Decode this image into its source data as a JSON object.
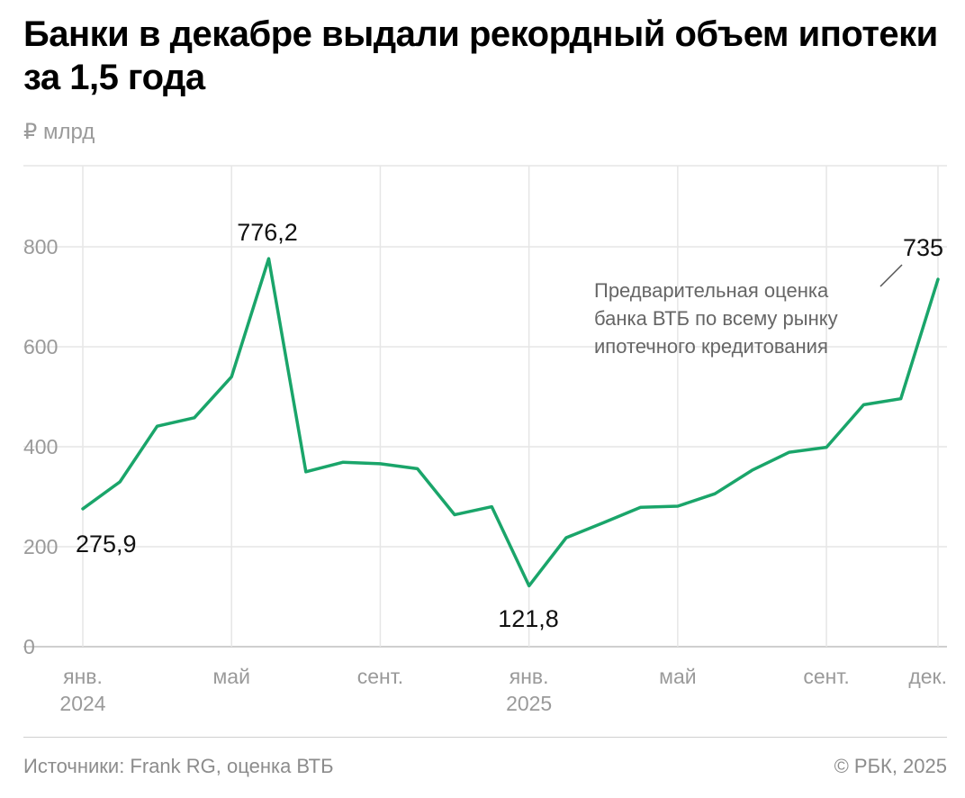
{
  "title": "Банки в декабре выдали рекордный объем ипотеки за 1,5 года",
  "unit_label": "₽ млрд",
  "source": "Источники: Frank RG, оценка ВТБ",
  "copyright": "© РБК, 2025",
  "colors": {
    "line": "#1aa56a",
    "grid": "#e6e6e6",
    "axis_text": "#9a9a9a"
  },
  "chart_data": {
    "type": "line",
    "title": "Банки в декабре выдали рекордный объем ипотеки за 1,5 года",
    "ylabel": "₽ млрд",
    "ylim": [
      0,
      800
    ],
    "yticks": [
      0,
      200,
      400,
      600,
      800
    ],
    "grid": true,
    "x": [
      "2024-01",
      "2024-02",
      "2024-03",
      "2024-04",
      "2024-05",
      "2024-06",
      "2024-07",
      "2024-08",
      "2024-09",
      "2024-10",
      "2024-11",
      "2024-12",
      "2025-01",
      "2025-02",
      "2025-03",
      "2025-04",
      "2025-05",
      "2025-06",
      "2025-07",
      "2025-08",
      "2025-09",
      "2025-10",
      "2025-11",
      "2025-12"
    ],
    "series": [
      {
        "values": [
          275.9,
          330,
          441,
          458,
          540,
          776.2,
          350,
          369,
          366,
          356,
          264,
          280,
          121.8,
          218,
          248,
          279,
          281,
          306,
          353,
          389,
          399,
          484,
          496,
          735
        ]
      }
    ],
    "xticks": [
      {
        "x": "2024-01",
        "label": "янв.",
        "sublabel": "2024"
      },
      {
        "x": "2024-05",
        "label": "май"
      },
      {
        "x": "2024-09",
        "label": "сент."
      },
      {
        "x": "2025-01",
        "label": "янв.",
        "sublabel": "2025"
      },
      {
        "x": "2025-05",
        "label": "май"
      },
      {
        "x": "2025-09",
        "label": "сент."
      },
      {
        "x": "2025-12",
        "label": "дек."
      }
    ],
    "data_labels": [
      {
        "x": "2024-01",
        "text": "275,9"
      },
      {
        "x": "2024-06",
        "text": "776,2"
      },
      {
        "x": "2025-01",
        "text": "121,8"
      },
      {
        "x": "2025-12",
        "text": "735"
      }
    ],
    "annotation": {
      "x": "2025-12",
      "lines": [
        "Предварительная оценка",
        "банка ВТБ по всему рынку",
        "ипотечного кредитования"
      ]
    }
  }
}
